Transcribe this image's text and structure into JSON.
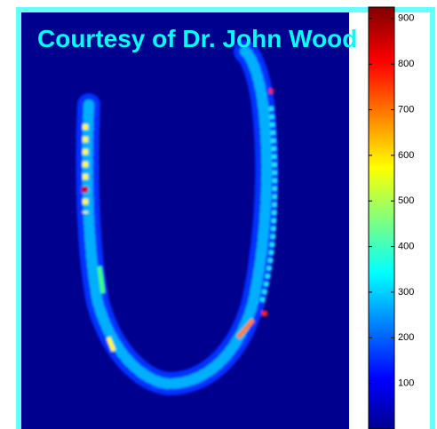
{
  "chart_data": {
    "type": "heatmap",
    "annotation": "Courtesy of Dr. John Wood",
    "clim": [
      0,
      925
    ],
    "cticks": [
      100,
      200,
      300,
      400,
      500,
      600,
      700,
      800,
      900
    ]
  }
}
